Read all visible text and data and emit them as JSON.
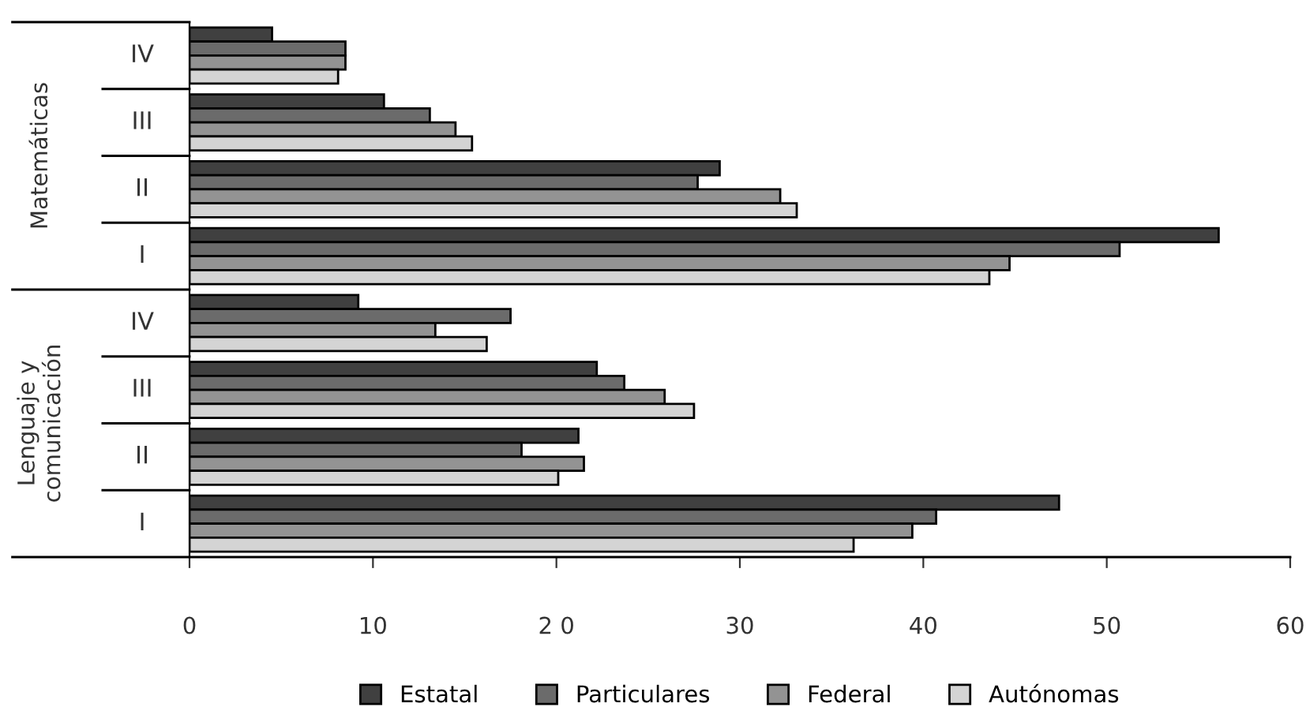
{
  "chart_data": {
    "type": "bar",
    "orientation": "horizontal",
    "categories": [
      "IV",
      "III",
      "II",
      "I",
      "IV",
      "III",
      "II",
      "I"
    ],
    "annotations": [
      "Matemáticas",
      "Lenguaje y\ncomunicación"
    ],
    "series": [
      {
        "name": "Estatal",
        "color": "#404040",
        "values": [
          4.5,
          10.6,
          28.9,
          56.1,
          9.2,
          22.2,
          21.2,
          47.4
        ]
      },
      {
        "name": "Particulares",
        "color": "#6b6b6b",
        "values": [
          8.5,
          13.1,
          27.7,
          50.7,
          17.5,
          23.7,
          18.1,
          40.7
        ]
      },
      {
        "name": "Federal",
        "color": "#939393",
        "values": [
          8.5,
          14.5,
          32.2,
          44.7,
          13.4,
          25.9,
          21.5,
          39.4
        ]
      },
      {
        "name": "Autónomas",
        "color": "#d4d4d4",
        "values": [
          8.1,
          15.4,
          33.1,
          43.6,
          16.2,
          27.5,
          20.1,
          36.2
        ]
      }
    ],
    "xlim": [
      0,
      60
    ],
    "xticks": [
      0,
      10,
      {
        "value": 20,
        "label": "2 0"
      },
      30,
      40,
      50,
      60
    ],
    "legend": "bottom",
    "grid": false
  }
}
